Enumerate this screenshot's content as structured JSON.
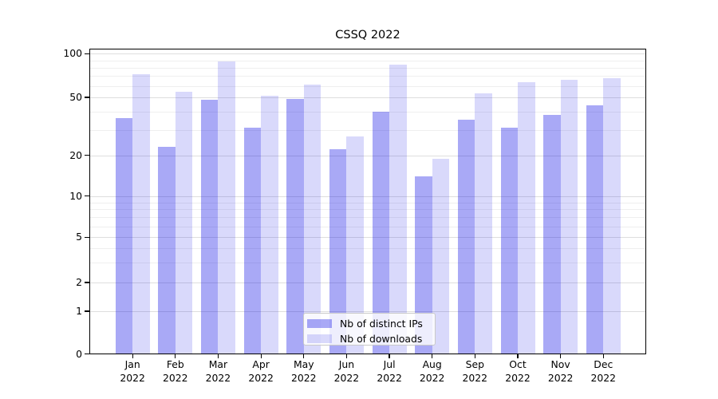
{
  "title": "CSSQ 2022",
  "chart_data": {
    "type": "bar",
    "title": "CSSQ 2022",
    "categories": [
      "Jan 2022",
      "Feb 2022",
      "Mar 2022",
      "Apr 2022",
      "May 2022",
      "Jun 2022",
      "Jul 2022",
      "Aug 2022",
      "Sep 2022",
      "Oct 2022",
      "Nov 2022",
      "Dec 2022"
    ],
    "series": [
      {
        "name": "Nb of distinct IPs",
        "color": "rgba(10,10,230,0.35)",
        "color_hex": "#a9a9f8",
        "values": [
          36,
          23,
          48,
          31,
          49,
          22,
          40,
          14,
          35,
          31,
          38,
          44
        ]
      },
      {
        "name": "Nb of downloads",
        "color": "rgba(10,10,230,0.155)",
        "color_hex": "#d9d9f9",
        "values": [
          72,
          55,
          88,
          51,
          61,
          27,
          84,
          19,
          53,
          64,
          66,
          68
        ]
      }
    ],
    "xlabel": "",
    "ylabel": "",
    "y_axis": {
      "scale": "log-with-zero-baseline",
      "ticks": [
        100,
        50,
        20,
        10,
        5,
        2,
        1,
        0
      ],
      "minor_gridlines": [
        3,
        4,
        6,
        7,
        8,
        9,
        30,
        40,
        60,
        70,
        80,
        90
      ],
      "range_bottom": 0,
      "range_top_label": 100
    },
    "grid": true,
    "legend_position": "inside-bottom-center"
  }
}
